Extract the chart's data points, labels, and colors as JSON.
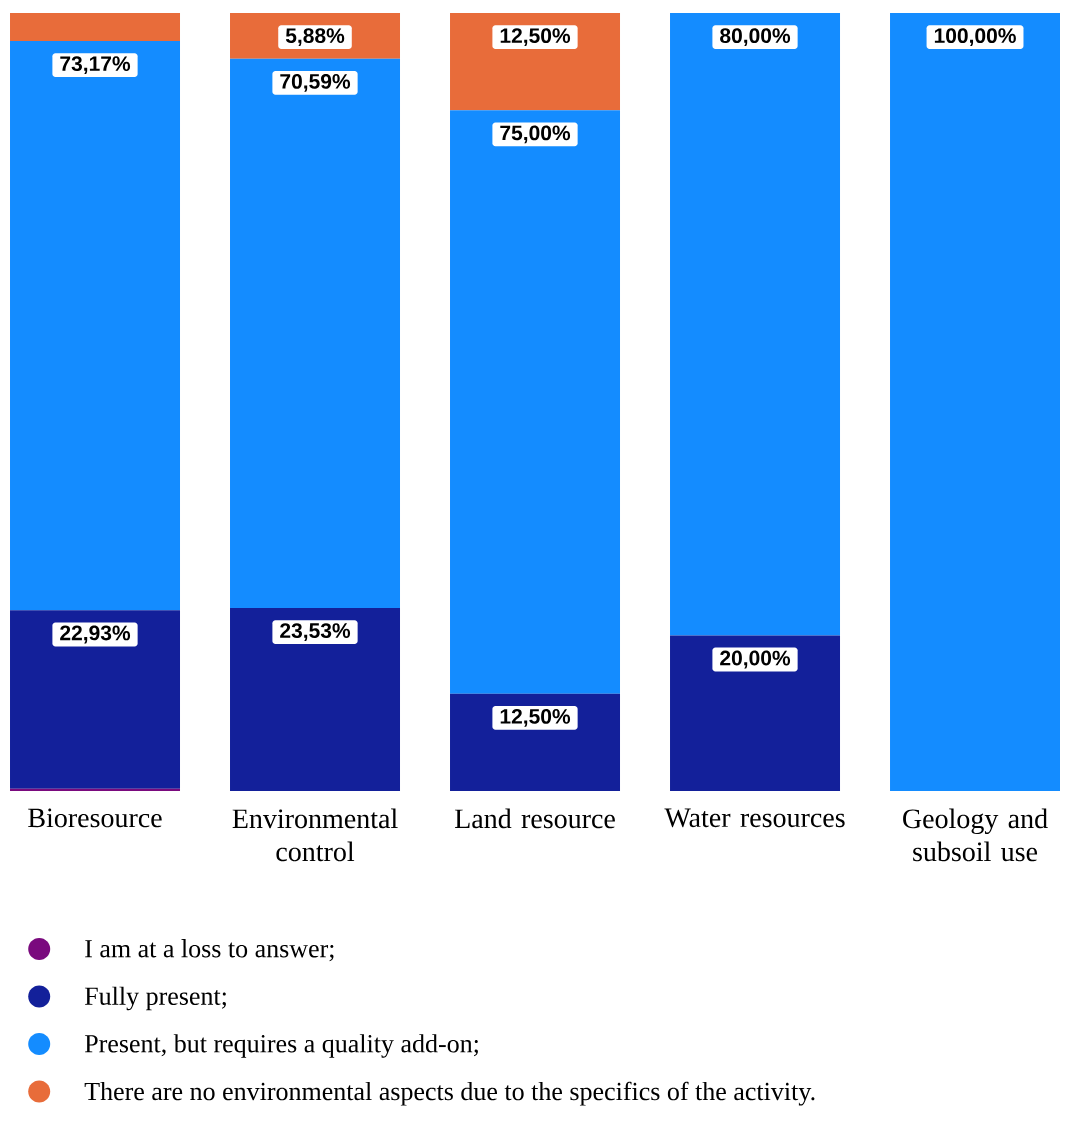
{
  "chart_data": {
    "type": "bar",
    "stacked": true,
    "categories": [
      "Bioresource",
      "Environmental control",
      "Land resource",
      "Water resources",
      "Geology and subsoil use"
    ],
    "tick_labels": "x",
    "legend": "bottom",
    "series": [
      {
        "name": "I am at a loss to answer;",
        "color": "#7a0a7e",
        "values": [
          0.3,
          0,
          0,
          0,
          0
        ],
        "value_labels": [
          null,
          null,
          null,
          null,
          null
        ]
      },
      {
        "name": "Fully present;",
        "color": "#13209a",
        "values": [
          22.93,
          23.53,
          12.5,
          20.0,
          0
        ],
        "value_labels": [
          "22,93%",
          "23,53%",
          "12,50%",
          "20,00%",
          null
        ]
      },
      {
        "name": "Present, but requires a quality add-on;",
        "color": "#148cff",
        "values": [
          73.17,
          70.59,
          75.0,
          80.0,
          100.0
        ],
        "value_labels": [
          "73,17%",
          "70,59%",
          "75,00%",
          "80,00%",
          "100,00%"
        ]
      },
      {
        "name": "There are no environmental aspects due to the specifics of the activity.",
        "color": "#e86c3a",
        "values": [
          3.6,
          5.88,
          12.5,
          0,
          0
        ],
        "value_labels": [
          null,
          "5,88%",
          "12,50%",
          null,
          null
        ]
      }
    ]
  }
}
